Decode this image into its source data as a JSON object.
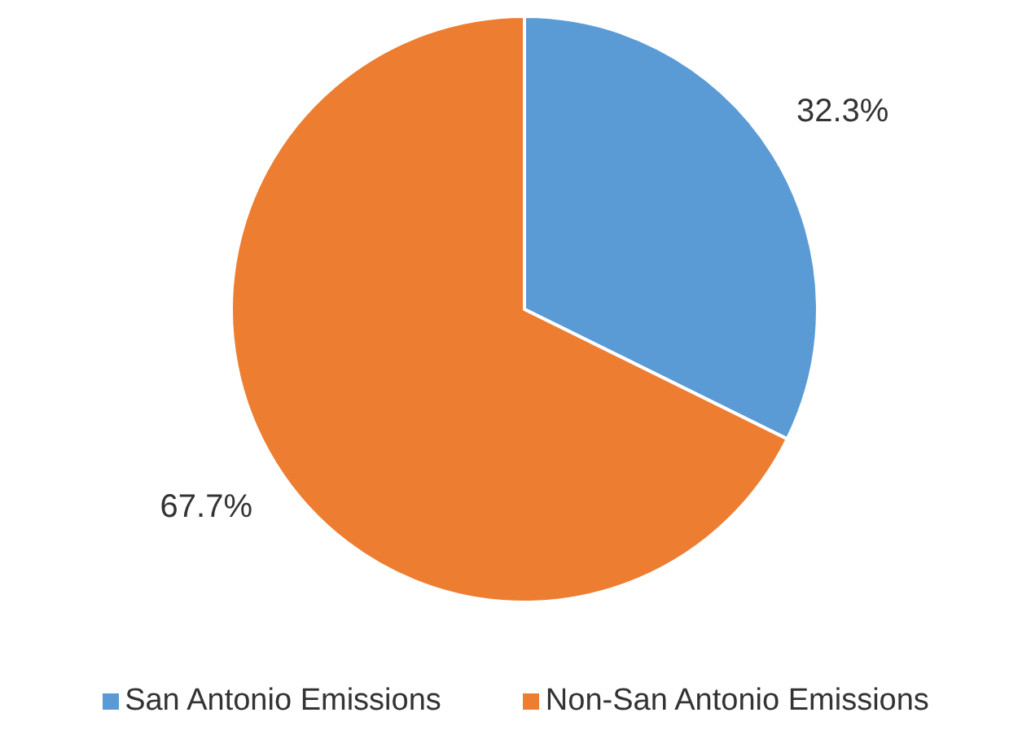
{
  "chart_data": {
    "type": "pie",
    "categories": [
      "San Antonio Emissions",
      "Non-San Antonio Emissions"
    ],
    "values": [
      32.3,
      67.7
    ],
    "colors": [
      "#5b9bd5",
      "#ed7d31"
    ],
    "value_labels": [
      "32.3%",
      "67.7%"
    ],
    "legend": "bottom"
  }
}
